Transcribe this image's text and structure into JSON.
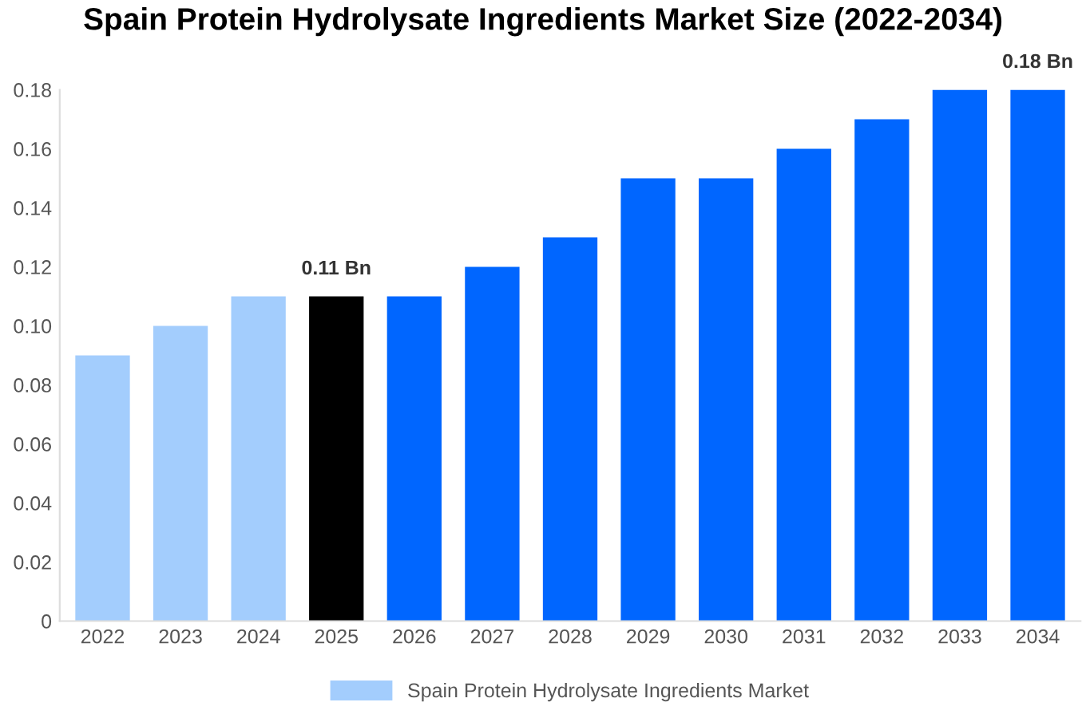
{
  "chart_data": {
    "type": "bar",
    "title": "Spain Protein Hydrolysate Ingredients Market Size (2022-2034)",
    "categories": [
      "2022",
      "2023",
      "2024",
      "2025",
      "2026",
      "2027",
      "2028",
      "2029",
      "2030",
      "2031",
      "2032",
      "2033",
      "2034"
    ],
    "series": [
      {
        "name": "Spain Protein Hydrolysate Ingredients Market",
        "color": "#a3cdfd",
        "colors": [
          "#a3cdfd",
          "#a3cdfd",
          "#a3cdfd",
          "#000000",
          "#0066ff",
          "#0066ff",
          "#0066ff",
          "#0066ff",
          "#0066ff",
          "#0066ff",
          "#0066ff",
          "#0066ff",
          "#0066ff"
        ],
        "values": [
          0.09,
          0.1,
          0.11,
          0.11,
          0.11,
          0.12,
          0.13,
          0.15,
          0.15,
          0.16,
          0.17,
          0.18,
          0.18
        ],
        "value_labels": [
          null,
          null,
          null,
          "0.11 Bn",
          null,
          null,
          null,
          null,
          null,
          null,
          null,
          null,
          "0.18 Bn"
        ]
      }
    ],
    "ylim": [
      0,
      0.18
    ],
    "yticks": [
      {
        "value": 0,
        "label": "0"
      },
      {
        "value": 0.02,
        "label": "0.02"
      },
      {
        "value": 0.04,
        "label": "0.04"
      },
      {
        "value": 0.06,
        "label": "0.06"
      },
      {
        "value": 0.08,
        "label": "0.08"
      },
      {
        "value": 0.1,
        "label": "0.10"
      },
      {
        "value": 0.12,
        "label": "0.12"
      },
      {
        "value": 0.14,
        "label": "0.14"
      },
      {
        "value": 0.16,
        "label": "0.16"
      },
      {
        "value": 0.18,
        "label": "0.18"
      }
    ],
    "grid": false,
    "legend": "bottom"
  }
}
